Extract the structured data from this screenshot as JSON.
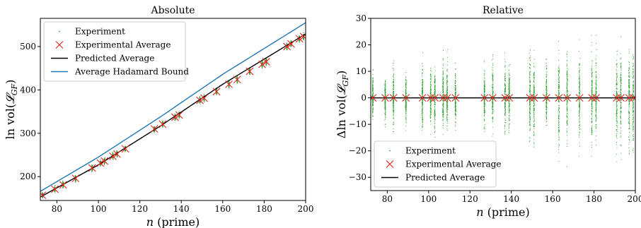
{
  "chart_data": [
    {
      "type": "scatter",
      "title": "Absolute",
      "xlabel": "n (prime)",
      "ylabel": "ln vol(𝓛_GF)",
      "xlim": [
        72,
        200
      ],
      "ylim": [
        145,
        565
      ],
      "xticks": [
        80,
        100,
        120,
        140,
        160,
        180,
        200
      ],
      "yticks": [
        200,
        300,
        400,
        500
      ],
      "primes": [
        73,
        79,
        83,
        89,
        97,
        101,
        103,
        107,
        109,
        113,
        127,
        131,
        137,
        139,
        149,
        151,
        157,
        163,
        167,
        173,
        179,
        181,
        191,
        193,
        197,
        199
      ],
      "series": [
        {
          "name": "Experiment",
          "kind": "points",
          "color": "#2ca02c",
          "spread": 10
        },
        {
          "name": "Experimental Average",
          "kind": "x-markers",
          "color": "#e8201c",
          "values": [
            157,
            171,
            181,
            196,
            220,
            231,
            236,
            247,
            252,
            264,
            310,
            321,
            337,
            342,
            376,
            381,
            396,
            413,
            424,
            443,
            459,
            465,
            500,
            506,
            518,
            523
          ]
        },
        {
          "name": "Predicted Average",
          "kind": "line",
          "color": "#000000",
          "x": [
            72,
            100,
            130,
            160,
            200
          ],
          "y": [
            153,
            227,
            317,
            413,
            529
          ]
        },
        {
          "name": "Average Hadamard Bound",
          "kind": "line",
          "color": "#1f77b4",
          "x": [
            72,
            100,
            130,
            160,
            200
          ],
          "y": [
            166,
            245,
            338,
            436,
            555
          ]
        }
      ],
      "legend": "top-left",
      "grid": false
    },
    {
      "type": "scatter",
      "title": "Relative",
      "xlabel": "n (prime)",
      "ylabel": "Δln vol(𝓛_GF)",
      "xlim": [
        72,
        200
      ],
      "ylim": [
        -35,
        30
      ],
      "xticks": [
        80,
        100,
        120,
        140,
        160,
        180,
        200
      ],
      "yticks": [
        -30,
        -20,
        -10,
        0,
        10,
        20,
        30
      ],
      "primes": [
        73,
        79,
        83,
        89,
        97,
        101,
        103,
        107,
        109,
        113,
        127,
        131,
        137,
        139,
        149,
        151,
        157,
        163,
        167,
        173,
        179,
        181,
        191,
        193,
        197,
        199
      ],
      "spread_min": [
        -10,
        -13,
        -15,
        -13,
        -17,
        -14,
        -18,
        -15,
        -17,
        -14,
        -15,
        -15,
        -16,
        -17,
        -22,
        -25,
        -15,
        -31,
        -27,
        -22,
        -22,
        -24,
        -25,
        -26,
        -27,
        -33
      ],
      "spread_max": [
        13,
        12,
        14,
        12,
        17,
        15,
        15,
        20,
        21,
        15,
        14,
        18,
        19,
        17,
        23,
        21,
        19,
        22,
        21,
        22,
        26,
        27,
        21,
        23,
        23,
        22
      ],
      "series": [
        {
          "name": "Experiment",
          "kind": "points",
          "color": "#2ca02c"
        },
        {
          "name": "Experimental Average",
          "kind": "x-markers",
          "color": "#e8201c",
          "values": [
            0,
            0,
            0,
            0,
            0,
            0,
            0,
            0,
            0,
            0,
            0,
            0,
            0,
            0,
            0,
            0,
            0,
            0,
            0,
            0,
            0,
            0,
            0,
            0,
            0,
            0
          ]
        },
        {
          "name": "Predicted Average",
          "kind": "line",
          "color": "#000000",
          "x": [
            72,
            200
          ],
          "y": [
            0,
            0
          ]
        }
      ],
      "legend": "bottom-left",
      "grid": false
    }
  ]
}
